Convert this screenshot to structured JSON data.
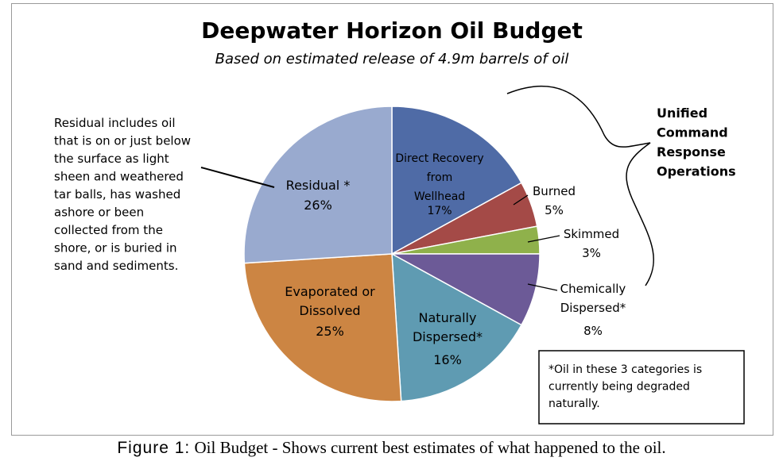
{
  "chart_data": {
    "type": "pie",
    "title": "Deepwater Horizon Oil Budget",
    "subtitle": "Based on estimated release of 4.9m barrels of oil",
    "slices": [
      {
        "label": "Direct Recovery from Wellhead",
        "value": 17,
        "pct_label": "17%",
        "color": "#4f6ba6"
      },
      {
        "label": "Burned",
        "value": 5,
        "pct_label": "5%",
        "color": "#a44a47"
      },
      {
        "label": "Skimmed",
        "value": 3,
        "pct_label": "3%",
        "color": "#8fb14b"
      },
      {
        "label": "Chemically Dispersed*",
        "value": 8,
        "pct_label": "8%",
        "color": "#6c5a97"
      },
      {
        "label": "Naturally Dispersed*",
        "value": 16,
        "pct_label": "16%",
        "color": "#5f9bb2"
      },
      {
        "label": "Evaporated or Dissolved",
        "value": 25,
        "pct_label": "25%",
        "color": "#cc8543"
      },
      {
        "label": "Residual *",
        "value": 26,
        "pct_label": "26%",
        "color": "#99aacf"
      }
    ],
    "annotations": {
      "residual_note": [
        "Residual includes oil",
        "that is on or just below",
        "the surface as light",
        "sheen and weathered",
        "tar balls, has washed",
        "ashore or been",
        "collected from the",
        "shore, or is buried in",
        "sand and sediments."
      ],
      "ucro": [
        "Unified",
        "Command",
        "Response",
        "Operations"
      ],
      "footnote": [
        "*Oil in these 3 categories is",
        "currently being degraded",
        "naturally."
      ]
    }
  },
  "caption": {
    "figure": "Figure 1:",
    "text": " Oil Budget - Shows current best estimates of what happened to the oil."
  }
}
